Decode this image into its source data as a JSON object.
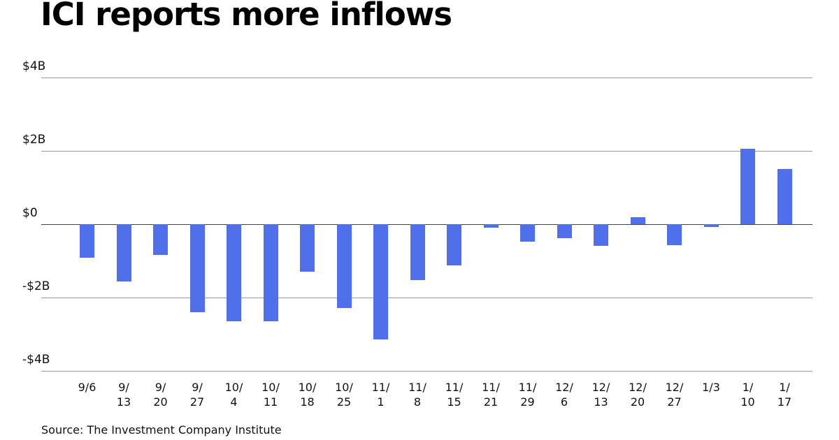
{
  "header": {
    "title": "ICI reports more inflows"
  },
  "footer": {
    "source": "Source: The Investment Company Institute"
  },
  "colors": {
    "bar": "#4F6FEB",
    "gridline": "#9a9a9a",
    "zero_line": "#444444"
  },
  "chart_data": {
    "type": "bar",
    "title": "ICI reports more inflows",
    "xlabel": "",
    "ylabel": "",
    "ylim": [
      -4,
      4
    ],
    "yticks": [
      "$4B",
      "$2B",
      "$0",
      "-$2B",
      "-$4B"
    ],
    "ytick_values": [
      4,
      2,
      0,
      -2,
      -4
    ],
    "grid": true,
    "legend": null,
    "units": "billions USD",
    "categories": [
      "9/6",
      "9/13",
      "9/20",
      "9/27",
      "10/4",
      "10/11",
      "10/18",
      "10/25",
      "11/1",
      "11/8",
      "11/15",
      "11/21",
      "11/29",
      "12/6",
      "12/13",
      "12/20",
      "12/27",
      "1/3",
      "1/10",
      "1/17"
    ],
    "category_labels": [
      "9/6",
      "9/\n13",
      "9/\n20",
      "9/\n27",
      "10/\n4",
      "10/\n11",
      "10/\n18",
      "10/\n25",
      "11/\n1",
      "11/\n8",
      "11/\n15",
      "11/\n21",
      "11/\n29",
      "12/\n6",
      "12/\n13",
      "12/\n20",
      "12/\n27",
      "1/3",
      "1/\n10",
      "1/\n17"
    ],
    "values": [
      -0.91,
      -1.56,
      -0.84,
      -2.4,
      -2.64,
      -2.64,
      -1.29,
      -2.28,
      -3.14,
      -1.52,
      -1.12,
      -0.09,
      -0.47,
      -0.38,
      -0.58,
      0.19,
      -0.57,
      -0.08,
      2.05,
      1.5
    ],
    "source": "Source: The Investment Company Institute"
  }
}
